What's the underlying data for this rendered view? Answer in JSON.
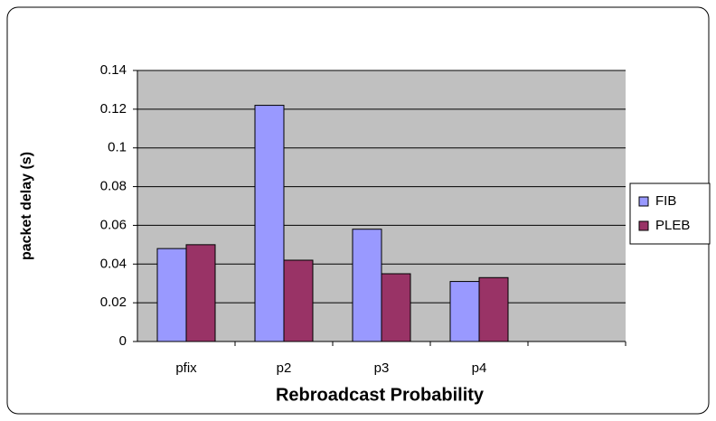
{
  "chart_data": {
    "type": "bar",
    "x_label": "Rebroadcast Probability",
    "y_label": "packet delay (s)",
    "categories": [
      "pfix",
      "p2",
      "p3",
      "p4",
      null
    ],
    "series": [
      {
        "name": "FIB",
        "color": "#9999ff",
        "values": [
          0.048,
          0.122,
          0.058,
          0.031,
          null
        ]
      },
      {
        "name": "PLEB",
        "color": "#993366",
        "values": [
          0.05,
          0.042,
          0.035,
          0.033,
          null
        ]
      }
    ],
    "ylim": [
      0,
      0.14
    ],
    "yticks": [
      0,
      0.02,
      0.04,
      0.06,
      0.08,
      0.1,
      0.12,
      0.14
    ],
    "grid": true,
    "legend": "right"
  }
}
